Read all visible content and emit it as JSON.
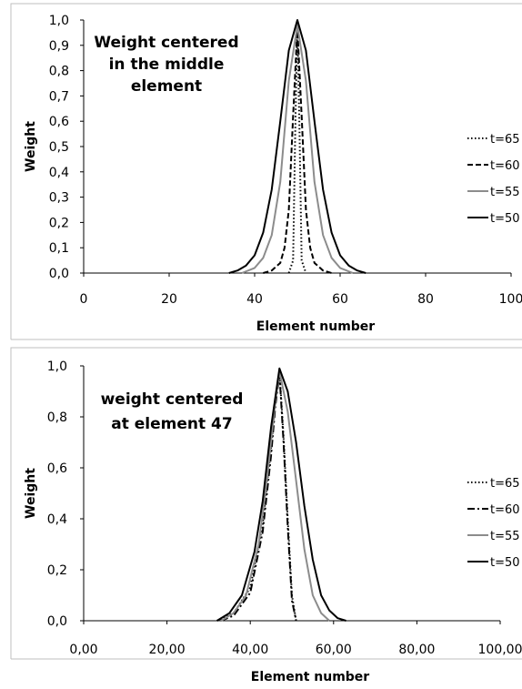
{
  "chart_data": [
    {
      "type": "line",
      "annotation_lines": [
        "Weight centered",
        "in the middle",
        "element"
      ],
      "xlabel": "Element number",
      "ylabel": "Weight",
      "xlim": [
        0,
        100
      ],
      "ylim": [
        0,
        1
      ],
      "xticks": [
        "0",
        "20",
        "40",
        "60",
        "80",
        "100"
      ],
      "yticks": [
        "0,0",
        "0,1",
        "0,2",
        "0,3",
        "0,4",
        "0,5",
        "0,6",
        "0,7",
        "0,8",
        "0,9",
        "1,0"
      ],
      "legend_position": "right",
      "series": [
        {
          "name": "t=65",
          "dash": "dotted",
          "color": "#000000",
          "x": [
            48,
            49,
            49.5,
            50,
            50.5,
            51,
            52
          ],
          "y": [
            0,
            0.05,
            0.55,
            0.99,
            0.55,
            0.05,
            0
          ]
        },
        {
          "name": "t=60",
          "dash": "dashed",
          "color": "#000000",
          "x": [
            42,
            44,
            46,
            47,
            48,
            49,
            50,
            51,
            52,
            53,
            54,
            56,
            58
          ],
          "y": [
            0,
            0.01,
            0.04,
            0.1,
            0.25,
            0.62,
            0.97,
            0.62,
            0.25,
            0.1,
            0.04,
            0.01,
            0
          ]
        },
        {
          "name": "t=55",
          "dash": "solid",
          "color": "#8c8c8c",
          "x": [
            37,
            40,
            42,
            44,
            46,
            48,
            50,
            52,
            54,
            56,
            58,
            60,
            63
          ],
          "y": [
            0,
            0.02,
            0.06,
            0.15,
            0.36,
            0.76,
            0.98,
            0.76,
            0.36,
            0.15,
            0.06,
            0.02,
            0
          ]
        },
        {
          "name": "t=50",
          "dash": "solid",
          "color": "#000000",
          "x": [
            34,
            36,
            38,
            40,
            42,
            44,
            46,
            48,
            50,
            52,
            54,
            56,
            58,
            60,
            62,
            64,
            66
          ],
          "y": [
            0,
            0.01,
            0.03,
            0.07,
            0.16,
            0.33,
            0.6,
            0.88,
            1.0,
            0.88,
            0.6,
            0.33,
            0.16,
            0.07,
            0.03,
            0.01,
            0
          ]
        }
      ]
    },
    {
      "type": "line",
      "annotation_lines": [
        "weight centered",
        "at element 47"
      ],
      "xlabel": "Element number",
      "ylabel": "Weight",
      "xlim": [
        0,
        100
      ],
      "ylim": [
        0,
        1
      ],
      "xticks": [
        "0,00",
        "20,00",
        "40,00",
        "60,00",
        "80,00",
        "100,00"
      ],
      "yticks": [
        "0,0",
        "0,2",
        "0,4",
        "0,6",
        "0,8",
        "1,0"
      ],
      "legend_position": "right",
      "series": [
        {
          "name": "t=65",
          "dash": "dotted",
          "color": "#000000",
          "x": [
            32,
            36,
            40,
            43,
            45,
            46,
            47,
            48,
            49,
            50,
            51
          ],
          "y": [
            0,
            0.03,
            0.13,
            0.38,
            0.68,
            0.86,
            0.98,
            0.72,
            0.4,
            0.1,
            0
          ]
        },
        {
          "name": "t=60",
          "dash": "dashdot",
          "color": "#000000",
          "x": [
            33,
            36,
            40,
            43,
            45,
            46,
            47,
            48,
            49,
            50,
            51
          ],
          "y": [
            0,
            0.02,
            0.11,
            0.35,
            0.65,
            0.84,
            0.97,
            0.7,
            0.37,
            0.08,
            0
          ]
        },
        {
          "name": "t=55",
          "dash": "solid",
          "color": "#8c8c8c",
          "x": [
            33,
            36,
            39,
            42,
            44,
            46,
            47,
            49,
            51,
            53,
            55,
            57,
            59
          ],
          "y": [
            0,
            0.03,
            0.1,
            0.3,
            0.55,
            0.86,
            0.98,
            0.82,
            0.55,
            0.28,
            0.1,
            0.03,
            0
          ]
        },
        {
          "name": "t=50",
          "dash": "solid",
          "color": "#000000",
          "x": [
            32,
            35,
            38,
            41,
            43,
            45,
            47,
            49,
            51,
            53,
            55,
            57,
            59,
            61,
            63
          ],
          "y": [
            0,
            0.03,
            0.1,
            0.27,
            0.47,
            0.76,
            0.99,
            0.9,
            0.7,
            0.45,
            0.24,
            0.1,
            0.04,
            0.01,
            0
          ]
        }
      ]
    }
  ]
}
